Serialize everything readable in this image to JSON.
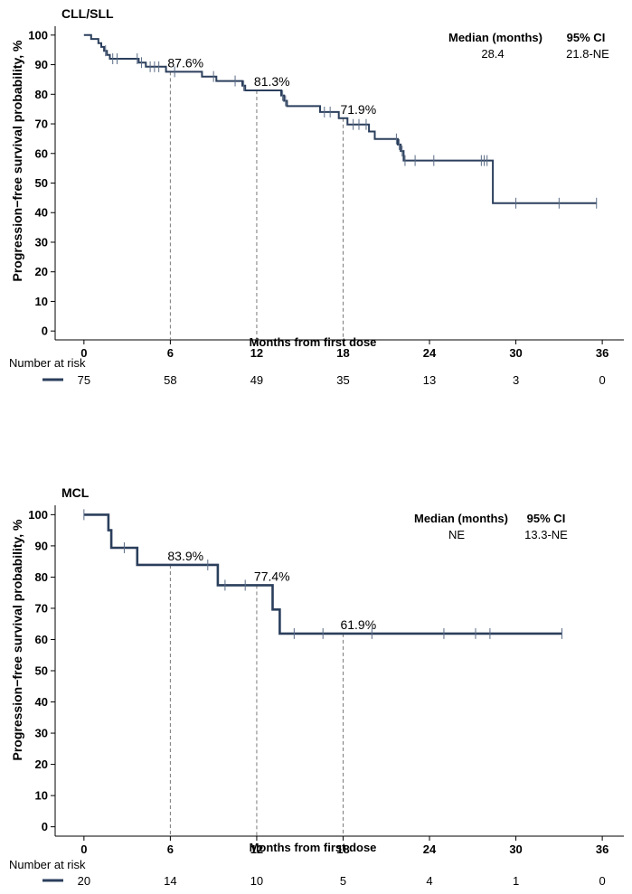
{
  "chart_data": [
    {
      "type": "line",
      "kind": "kaplan-meier",
      "title": "CLL/SLL",
      "ylabel": "Progression−free survival probability, %",
      "xlabel": "Months from  first dose",
      "xlim": [
        -2,
        37.5
      ],
      "ylim": [
        -3,
        103
      ],
      "xticks": [
        0,
        6,
        12,
        18,
        24,
        30,
        36
      ],
      "yticks": [
        0,
        10,
        20,
        30,
        40,
        50,
        60,
        70,
        80,
        90,
        100
      ],
      "color": "#2b3f5c",
      "steps": [
        [
          0,
          100
        ],
        [
          0.5,
          100
        ],
        [
          0.5,
          98.7
        ],
        [
          1.0,
          98.7
        ],
        [
          1.0,
          97.3
        ],
        [
          1.2,
          97.3
        ],
        [
          1.2,
          96.0
        ],
        [
          1.4,
          96.0
        ],
        [
          1.4,
          94.7
        ],
        [
          1.6,
          94.7
        ],
        [
          1.6,
          93.3
        ],
        [
          1.8,
          93.3
        ],
        [
          1.8,
          92.0
        ],
        [
          3.8,
          92.0
        ],
        [
          3.8,
          90.7
        ],
        [
          4.3,
          90.7
        ],
        [
          4.3,
          89.3
        ],
        [
          5.7,
          89.3
        ],
        [
          5.7,
          87.6
        ],
        [
          8.2,
          87.6
        ],
        [
          8.2,
          86.0
        ],
        [
          9.2,
          86.0
        ],
        [
          9.2,
          84.5
        ],
        [
          11.0,
          84.5
        ],
        [
          11.0,
          82.9
        ],
        [
          11.2,
          82.9
        ],
        [
          11.2,
          81.3
        ],
        [
          13.7,
          81.3
        ],
        [
          13.7,
          79.6
        ],
        [
          13.9,
          79.6
        ],
        [
          13.9,
          77.8
        ],
        [
          14.1,
          77.8
        ],
        [
          14.1,
          76.0
        ],
        [
          16.4,
          76.0
        ],
        [
          16.4,
          74.0
        ],
        [
          17.7,
          74.0
        ],
        [
          17.7,
          71.9
        ],
        [
          18.3,
          71.9
        ],
        [
          18.3,
          69.8
        ],
        [
          19.8,
          69.8
        ],
        [
          19.8,
          67.4
        ],
        [
          20.2,
          67.4
        ],
        [
          20.2,
          64.9
        ],
        [
          21.8,
          64.9
        ],
        [
          21.8,
          63.0
        ],
        [
          22.0,
          63.0
        ],
        [
          22.0,
          60.8
        ],
        [
          22.2,
          60.8
        ],
        [
          22.2,
          57.6
        ],
        [
          28.4,
          57.6
        ],
        [
          28.4,
          43.2
        ],
        [
          35.6,
          43.2
        ]
      ],
      "censors": [
        [
          1.5,
          94.7
        ],
        [
          2.0,
          92.0
        ],
        [
          2.3,
          92.0
        ],
        [
          3.7,
          92.0
        ],
        [
          4.0,
          90.7
        ],
        [
          4.6,
          89.3
        ],
        [
          4.9,
          89.3
        ],
        [
          5.2,
          89.3
        ],
        [
          6.3,
          87.6
        ],
        [
          9.0,
          86.0
        ],
        [
          10.5,
          84.5
        ],
        [
          11.1,
          82.9
        ],
        [
          13.8,
          79.6
        ],
        [
          14.0,
          77.8
        ],
        [
          16.7,
          74.0
        ],
        [
          17.1,
          74.0
        ],
        [
          18.7,
          69.8
        ],
        [
          19.1,
          69.8
        ],
        [
          19.6,
          69.8
        ],
        [
          21.7,
          64.9
        ],
        [
          21.9,
          63.0
        ],
        [
          22.1,
          60.8
        ],
        [
          22.3,
          57.6
        ],
        [
          23.0,
          57.6
        ],
        [
          24.3,
          57.6
        ],
        [
          27.6,
          57.6
        ],
        [
          27.8,
          57.6
        ],
        [
          28.0,
          57.6
        ],
        [
          30.0,
          43.2
        ],
        [
          33.0,
          43.2
        ],
        [
          35.6,
          43.2
        ]
      ],
      "annotations": [
        {
          "x": 6,
          "y": 87.6,
          "label": "87.6%"
        },
        {
          "x": 12,
          "y": 81.3,
          "label": "81.3%"
        },
        {
          "x": 18,
          "y": 71.9,
          "label": "71.9%"
        }
      ],
      "legend_position": "top-right",
      "legend": {
        "median_header": "Median (months)",
        "ci_header": "95% CI",
        "median": "28.4",
        "ci": "21.8-NE"
      },
      "risk_table": {
        "title": "Number at risk",
        "values": [
          "75",
          "58",
          "49",
          "35",
          "13",
          "3",
          "0"
        ]
      }
    },
    {
      "type": "line",
      "kind": "kaplan-meier",
      "title": "MCL",
      "ylabel": "Progression−free survival probability, %",
      "xlabel": "Months from  first dose",
      "xlim": [
        -2,
        37.5
      ],
      "ylim": [
        -3,
        103
      ],
      "xticks": [
        0,
        6,
        12,
        18,
        24,
        30,
        36
      ],
      "yticks": [
        0,
        10,
        20,
        30,
        40,
        50,
        60,
        70,
        80,
        90,
        100
      ],
      "color": "#2b3f5c",
      "steps": [
        [
          0,
          100
        ],
        [
          1.7,
          100
        ],
        [
          1.7,
          95.0
        ],
        [
          1.9,
          95.0
        ],
        [
          1.9,
          89.4
        ],
        [
          3.7,
          89.4
        ],
        [
          3.7,
          83.9
        ],
        [
          9.3,
          83.9
        ],
        [
          9.3,
          77.4
        ],
        [
          13.1,
          77.4
        ],
        [
          13.1,
          69.6
        ],
        [
          13.6,
          69.6
        ],
        [
          13.6,
          61.9
        ],
        [
          33.2,
          61.9
        ]
      ],
      "censors": [
        [
          0,
          100
        ],
        [
          2.8,
          89.4
        ],
        [
          8.6,
          83.9
        ],
        [
          9.8,
          77.4
        ],
        [
          11.2,
          77.4
        ],
        [
          14.6,
          61.9
        ],
        [
          16.6,
          61.9
        ],
        [
          20.0,
          61.9
        ],
        [
          25.0,
          61.9
        ],
        [
          27.2,
          61.9
        ],
        [
          28.2,
          61.9
        ],
        [
          33.2,
          61.9
        ]
      ],
      "annotations": [
        {
          "x": 6,
          "y": 83.9,
          "label": "83.9%"
        },
        {
          "x": 12,
          "y": 77.4,
          "label": "77.4%"
        },
        {
          "x": 18,
          "y": 61.9,
          "label": "61.9%"
        }
      ],
      "legend_position": "top-right",
      "legend": {
        "median_header": "Median (months)",
        "ci_header": "95% CI",
        "median": "NE",
        "ci": "13.3-NE"
      },
      "risk_table": {
        "title": "Number at risk",
        "values": [
          "20",
          "14",
          "10",
          "5",
          "4",
          "1",
          "0"
        ]
      }
    }
  ]
}
